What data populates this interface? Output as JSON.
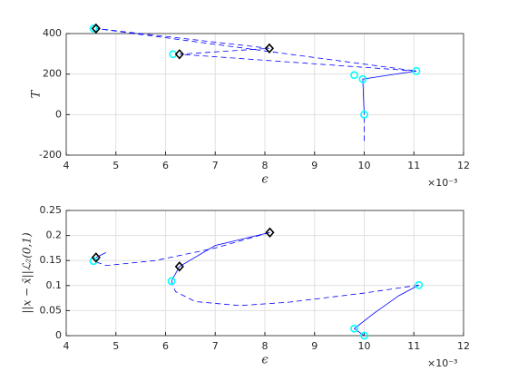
{
  "chart_data": [
    {
      "type": "line",
      "xlabel": "ϵ",
      "ylabel": "T",
      "exponent": "×10⁻³",
      "xlim": [
        4,
        12
      ],
      "ylim": [
        -200,
        400
      ],
      "xticks": [
        4,
        5,
        6,
        7,
        8,
        9,
        10,
        11,
        12
      ],
      "yticks": [
        -200,
        0,
        200,
        400
      ],
      "grid": true,
      "series": [
        {
          "color": "#0000ff",
          "style": "dashed",
          "x": [
            10,
            10
          ],
          "values": [
            -130,
            0
          ]
        },
        {
          "color": "#0000ff",
          "style": "solid",
          "x": [
            10,
            9.97,
            10.5,
            11.05
          ],
          "values": [
            0,
            175,
            195,
            215
          ]
        },
        {
          "color": "#0000ff",
          "style": "dashed",
          "x": [
            11.05,
            6.28,
            8.09,
            4.6,
            11.05
          ],
          "values": [
            215,
            298,
            327,
            425,
            215
          ]
        },
        {
          "color": "#00ffff",
          "marker": "circle",
          "x": [
            10,
            9.97,
            9.8,
            11.05,
            6.15,
            4.55
          ],
          "values": [
            0,
            175,
            195,
            215,
            298,
            425
          ]
        },
        {
          "color": "#000000",
          "marker": "diamond",
          "x": [
            6.28,
            8.09,
            4.6
          ],
          "values": [
            298,
            327,
            425
          ]
        }
      ]
    },
    {
      "type": "line",
      "xlabel": "ϵ",
      "ylabel": "||x − x̄||ℒ₂(0,1)",
      "exponent": "×10⁻³",
      "xlim": [
        4,
        12
      ],
      "ylim": [
        0,
        0.25
      ],
      "xticks": [
        4,
        5,
        6,
        7,
        8,
        9,
        10,
        11,
        12
      ],
      "yticks": [
        0,
        0.05,
        0.1,
        0.15,
        0.2,
        0.25
      ],
      "grid": true,
      "series": [
        {
          "color": "#0000ff",
          "style": "solid",
          "x": [
            10,
            9.8,
            10.2,
            10.7,
            11.1
          ],
          "values": [
            0,
            0.014,
            0.045,
            0.08,
            0.101
          ]
        },
        {
          "color": "#0000ff",
          "style": "dashed",
          "x": [
            11.1,
            10,
            8.5,
            7.5,
            6.6,
            6.2,
            6.12
          ],
          "values": [
            0.101,
            0.085,
            0.067,
            0.06,
            0.068,
            0.088,
            0.109
          ]
        },
        {
          "color": "#0000ff",
          "style": "solid",
          "x": [
            6.12,
            6.28,
            7,
            8.1
          ],
          "values": [
            0.109,
            0.138,
            0.18,
            0.206
          ]
        },
        {
          "color": "#0000ff",
          "style": "dashed",
          "x": [
            8.1,
            7,
            5.8,
            4.8,
            4.55
          ],
          "values": [
            0.206,
            0.175,
            0.15,
            0.14,
            0.149
          ]
        },
        {
          "color": "#0000ff",
          "style": "solid",
          "x": [
            4.6,
            4.8
          ],
          "values": [
            0.156,
            0.166
          ]
        },
        {
          "color": "#00ffff",
          "marker": "circle",
          "x": [
            10,
            9.8,
            11.1,
            6.12,
            4.55
          ],
          "values": [
            0,
            0.014,
            0.101,
            0.109,
            0.149
          ]
        },
        {
          "color": "#000000",
          "marker": "diamond",
          "x": [
            6.28,
            8.1,
            4.6
          ],
          "values": [
            0.138,
            0.206,
            0.156
          ]
        }
      ]
    }
  ]
}
